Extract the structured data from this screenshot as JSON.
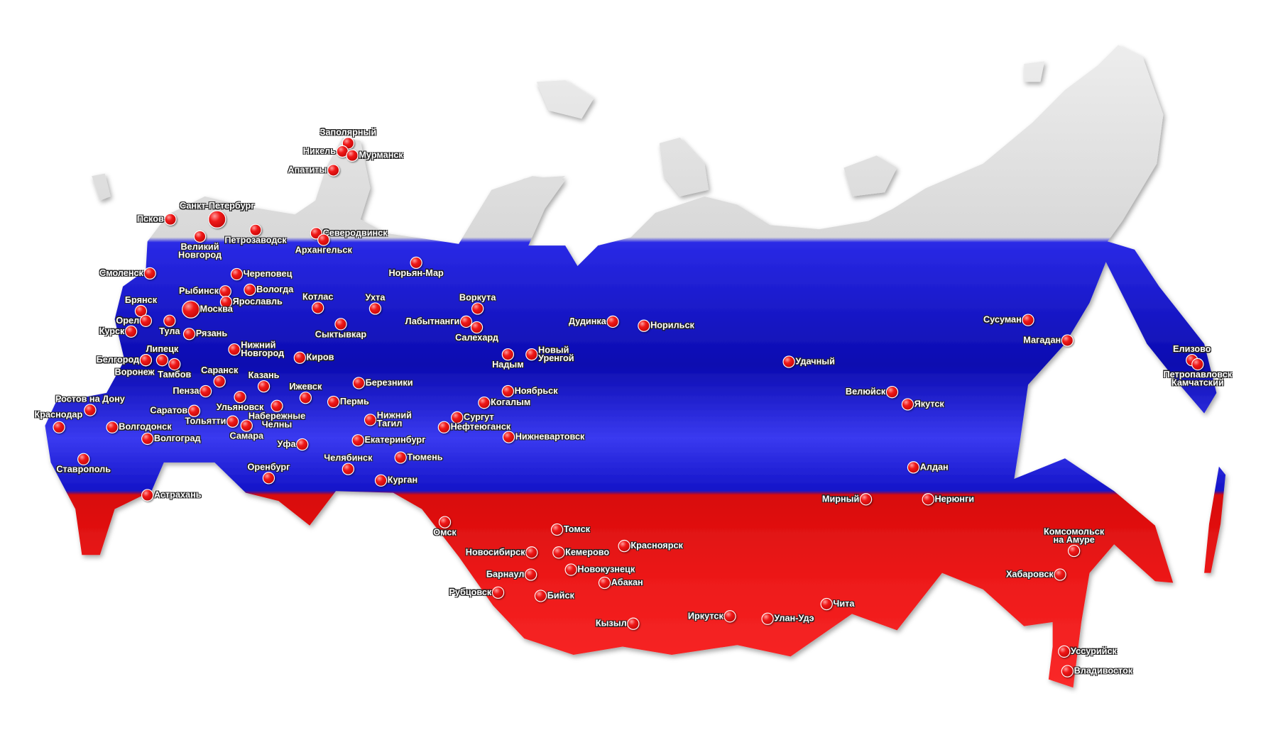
{
  "map": {
    "subject": "Russia",
    "colors": {
      "white": "#ececec",
      "blue": "#1c1cd8",
      "red": "#e8121a",
      "marker": "#e01010"
    },
    "cities": [
      {
        "name": "Заполярный"
      },
      {
        "name": "Никель"
      },
      {
        "name": "Мурманск"
      },
      {
        "name": "Апатиты"
      },
      {
        "name": "Санкт-Петербург"
      },
      {
        "name": "Псков"
      },
      {
        "name": "Великий Новгород",
        "lines": [
          "Великий",
          "Новгород"
        ]
      },
      {
        "name": "Петрозаводск"
      },
      {
        "name": "Северодвинск"
      },
      {
        "name": "Архангельск"
      },
      {
        "name": "Смоленск"
      },
      {
        "name": "Череповец"
      },
      {
        "name": "Рыбинск"
      },
      {
        "name": "Вологда"
      },
      {
        "name": "Ярославль"
      },
      {
        "name": "Москва"
      },
      {
        "name": "Брянск"
      },
      {
        "name": "Орел"
      },
      {
        "name": "Курск"
      },
      {
        "name": "Тула"
      },
      {
        "name": "Рязань"
      },
      {
        "name": "Котлас"
      },
      {
        "name": "Ухта"
      },
      {
        "name": "Сыктывкар"
      },
      {
        "name": "Липецк"
      },
      {
        "name": "Белгород"
      },
      {
        "name": "Воронеж"
      },
      {
        "name": "Тамбов"
      },
      {
        "name": "Нижний Новгород",
        "lines": [
          "Нижний",
          "Новгород"
        ]
      },
      {
        "name": "Киров"
      },
      {
        "name": "Саранск"
      },
      {
        "name": "Казань"
      },
      {
        "name": "Пенза"
      },
      {
        "name": "Ижевск"
      },
      {
        "name": "Березники"
      },
      {
        "name": "Пермь"
      },
      {
        "name": "Ульяновск"
      },
      {
        "name": "Саратов"
      },
      {
        "name": "Набережные Челны",
        "lines": [
          "Набережные",
          "Челны"
        ]
      },
      {
        "name": "Тольятти"
      },
      {
        "name": "Самара"
      },
      {
        "name": "Ростов на Дону"
      },
      {
        "name": "Краснодар"
      },
      {
        "name": "Волгодонск"
      },
      {
        "name": "Волгоград"
      },
      {
        "name": "Уфа"
      },
      {
        "name": "Нижний Тагил",
        "lines": [
          "Нижний",
          "Тагил"
        ]
      },
      {
        "name": "Екатеринбург"
      },
      {
        "name": "Челябинск"
      },
      {
        "name": "Тюмень"
      },
      {
        "name": "Оренбург"
      },
      {
        "name": "Курган"
      },
      {
        "name": "Ставрополь"
      },
      {
        "name": "Астрахань"
      },
      {
        "name": "Норьян-Мар"
      },
      {
        "name": "Воркута"
      },
      {
        "name": "Лабытнанги"
      },
      {
        "name": "Салехард"
      },
      {
        "name": "Надым"
      },
      {
        "name": "Новый Уренгой",
        "lines": [
          "Новый",
          "Уренгой"
        ]
      },
      {
        "name": "Ноябрьск"
      },
      {
        "name": "Когалым"
      },
      {
        "name": "Сургут"
      },
      {
        "name": "Нефтеюганск"
      },
      {
        "name": "Нижневартовск"
      },
      {
        "name": "Дудинка"
      },
      {
        "name": "Норильск"
      },
      {
        "name": "Удачный"
      },
      {
        "name": "Сусуман"
      },
      {
        "name": "Магадан"
      },
      {
        "name": "Елизово"
      },
      {
        "name": "Петропавловск Камчатский",
        "lines": [
          "Петропавловск",
          "Камчатский"
        ]
      },
      {
        "name": "Велюйск"
      },
      {
        "name": "Якутск"
      },
      {
        "name": "Алдан"
      },
      {
        "name": "Мирный"
      },
      {
        "name": "Нерюнги"
      },
      {
        "name": "Омск"
      },
      {
        "name": "Томск"
      },
      {
        "name": "Новосибирск"
      },
      {
        "name": "Кемерово"
      },
      {
        "name": "Красноярск"
      },
      {
        "name": "Новокузнецк"
      },
      {
        "name": "Барнаул"
      },
      {
        "name": "Абакан"
      },
      {
        "name": "Рубцовск"
      },
      {
        "name": "Бийск"
      },
      {
        "name": "Кызыл"
      },
      {
        "name": "Иркутск"
      },
      {
        "name": "Улан-Удэ"
      },
      {
        "name": "Чита"
      },
      {
        "name": "Комсомольск на Амуре",
        "lines": [
          "Комсомольск",
          "на Амуре"
        ]
      },
      {
        "name": "Хабаровск"
      },
      {
        "name": "Уссурийск"
      },
      {
        "name": "Владивосток"
      }
    ]
  }
}
